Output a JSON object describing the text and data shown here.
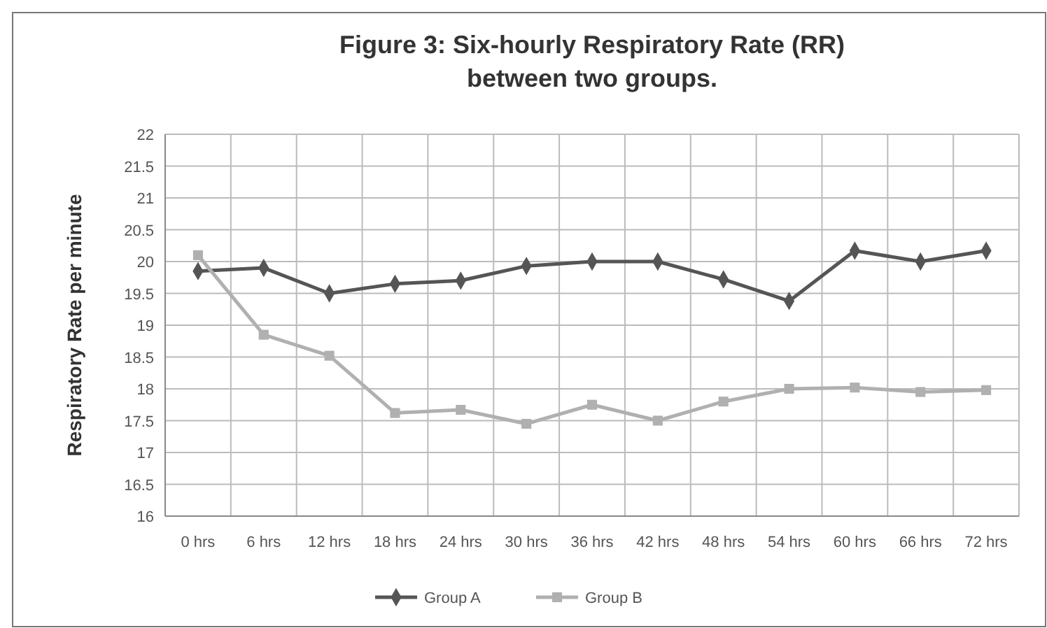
{
  "chart_data": {
    "type": "line",
    "title": "Figure 3: Six-hourly Respiratory Rate (RR)\nbetween two groups.",
    "ylabel": "Respiratory Rate per minute",
    "categories": [
      "0 hrs",
      "6 hrs",
      "12 hrs",
      "18 hrs",
      "24 hrs",
      "30 hrs",
      "36 hrs",
      "42 hrs",
      "48 hrs",
      "54 hrs",
      "60 hrs",
      "66 hrs",
      "72 hrs"
    ],
    "series": [
      {
        "name": "Group A",
        "color": "#555555",
        "marker": "diamond",
        "values": [
          19.85,
          19.9,
          19.5,
          19.65,
          19.7,
          19.93,
          20,
          20,
          19.72,
          19.38,
          20.17,
          20,
          20.17
        ]
      },
      {
        "name": "Group B",
        "color": "#b0b0b0",
        "marker": "square",
        "values": [
          20.1,
          18.85,
          18.52,
          17.62,
          17.67,
          17.45,
          17.75,
          17.5,
          17.8,
          18,
          18.02,
          17.95,
          17.98
        ]
      }
    ],
    "ylim": [
      16,
      22
    ],
    "yticks": [
      16,
      16.5,
      17,
      17.5,
      18,
      18.5,
      19,
      19.5,
      20,
      20.5,
      21,
      21.5,
      22
    ],
    "grid": true,
    "legend": "bottom"
  }
}
